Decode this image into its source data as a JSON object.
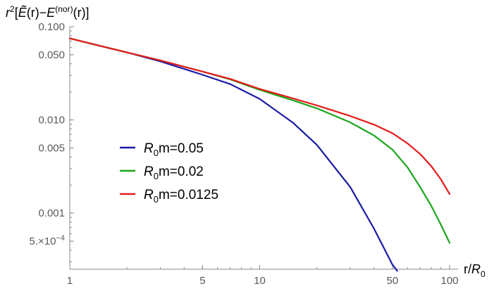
{
  "chart_data": {
    "type": "line",
    "x_scale": "log",
    "y_scale": "log",
    "xlabel": {
      "main": "r/",
      "italic": "R",
      "sub": "0"
    },
    "ylabel": {
      "r": "r",
      "sq": "2",
      "open": "[",
      "etilde": "Ẽ",
      "mid": "(r)−",
      "e": "E",
      "sup": "(nor)",
      "close": "(r)]"
    },
    "xlim": [
      1,
      100
    ],
    "ylim": [
      0.00025,
      0.1
    ],
    "x_ticks": [
      {
        "value": 1,
        "label": "1"
      },
      {
        "value": 5,
        "label": "5"
      },
      {
        "value": 10,
        "label": "10"
      },
      {
        "value": 50,
        "label": "50"
      },
      {
        "value": 100,
        "label": "100"
      }
    ],
    "y_ticks": [
      {
        "value": 0.1,
        "label": "0.100"
      },
      {
        "value": 0.05,
        "label": "0.050"
      },
      {
        "value": 0.01,
        "label": "0.010"
      },
      {
        "value": 0.005,
        "label": "0.005"
      },
      {
        "value": 0.001,
        "label": "0.001"
      },
      {
        "value": 0.0005,
        "label": "5.×10",
        "exp": "−4"
      }
    ],
    "legend_position": "center-left",
    "series": [
      {
        "name": {
          "italic": "R",
          "sub": "0",
          "rest": "m=0.05"
        },
        "color": "#1a1aa6",
        "x": [
          1,
          1.5,
          2,
          3,
          5,
          7,
          10,
          15,
          20,
          30,
          40,
          50,
          53
        ],
        "y": [
          0.075,
          0.061,
          0.053,
          0.0425,
          0.0305,
          0.0242,
          0.0168,
          0.0093,
          0.0054,
          0.0019,
          0.00068,
          0.00028,
          0.00024
        ]
      },
      {
        "name": {
          "italic": "R",
          "sub": "0",
          "rest": "m=0.02"
        },
        "color": "#1aa61a",
        "x": [
          1,
          2,
          3,
          5,
          7,
          10,
          15,
          20,
          30,
          40,
          50,
          60,
          70,
          80,
          90,
          100
        ],
        "y": [
          0.075,
          0.053,
          0.0435,
          0.033,
          0.0272,
          0.021,
          0.0162,
          0.0133,
          0.0094,
          0.0068,
          0.0048,
          0.0031,
          0.0019,
          0.0012,
          0.00075,
          0.00048
        ]
      },
      {
        "name": {
          "italic": "R",
          "sub": "0",
          "rest": "m=0.0125"
        },
        "color": "#e61a1a",
        "x": [
          1,
          2,
          3,
          5,
          7,
          10,
          15,
          20,
          30,
          40,
          50,
          60,
          70,
          80,
          90,
          100
        ],
        "y": [
          0.075,
          0.053,
          0.0435,
          0.033,
          0.0275,
          0.0215,
          0.017,
          0.0143,
          0.011,
          0.0089,
          0.0072,
          0.0056,
          0.0043,
          0.0032,
          0.0023,
          0.0016
        ]
      }
    ]
  }
}
